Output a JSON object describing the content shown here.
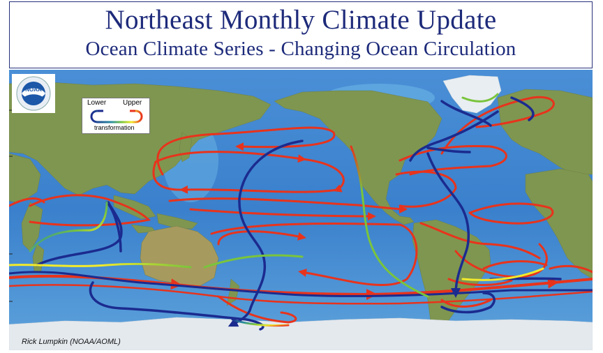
{
  "title": {
    "main": "Northeast Monthly Climate Update",
    "sub": "Ocean Climate Series - Changing Ocean Circulation"
  },
  "legend": {
    "lower": "Lower",
    "upper": "Upper",
    "transformation": "transformation"
  },
  "credit": "Rick Lumpkin (NOAA/AOML)",
  "logo": {
    "text": "NOAA",
    "icon": "noaa-logo-icon"
  },
  "colors": {
    "title": "#1d2a7a",
    "ocean": "#3e86cf",
    "land": "#7f9650",
    "upper_flow": "#e8331c",
    "lower_flow": "#1b2b8f",
    "transformation": [
      "#1b2b8f",
      "#2b8fa0",
      "#7ac43c",
      "#f2ea2c",
      "#e8331c"
    ]
  },
  "map": {
    "type": "global ocean circulation (conveyor belt)",
    "flows": [
      "upper ocean",
      "lower ocean",
      "transformation"
    ]
  }
}
